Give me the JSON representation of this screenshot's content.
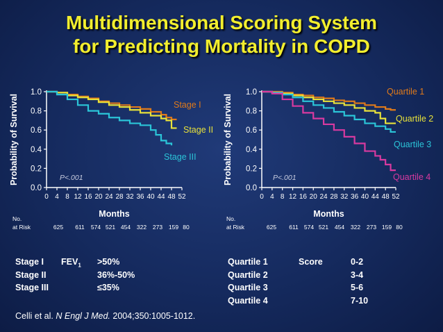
{
  "title_line1": "Multidimensional Scoring System",
  "title_line2": "for Predicting Mortality in COPD",
  "chart_data": [
    {
      "type": "line",
      "ylabel": "Probability of Survival",
      "xlabel": "Months",
      "xlim": [
        0,
        52
      ],
      "ylim": [
        0.0,
        1.0
      ],
      "x_ticks": [
        "0",
        "4",
        "8",
        "12",
        "16",
        "20",
        "24",
        "28",
        "32",
        "36",
        "40",
        "44",
        "48",
        "52"
      ],
      "y_ticks": [
        "0.0",
        "0.2",
        "0.4",
        "0.6",
        "0.8",
        "1.0"
      ],
      "annotation": "P<.001",
      "risk_label_line1": "No.",
      "risk_label_line2": "at Risk",
      "at_risk": [
        "625",
        "611",
        "574",
        "521",
        "454",
        "322",
        "273",
        "159",
        "80"
      ],
      "series": [
        {
          "name": "Stage I",
          "color": "#e07a1a",
          "x": [
            0,
            4,
            8,
            12,
            16,
            20,
            24,
            28,
            32,
            36,
            40,
            44,
            46,
            48,
            50
          ],
          "y": [
            1.0,
            0.99,
            0.97,
            0.95,
            0.93,
            0.9,
            0.88,
            0.86,
            0.84,
            0.82,
            0.79,
            0.76,
            0.73,
            0.71,
            0.71
          ]
        },
        {
          "name": "Stage II",
          "color": "#e8e23a",
          "x": [
            0,
            4,
            8,
            12,
            16,
            20,
            24,
            28,
            32,
            36,
            40,
            44,
            46,
            48,
            50
          ],
          "y": [
            1.0,
            0.99,
            0.96,
            0.94,
            0.92,
            0.89,
            0.86,
            0.84,
            0.81,
            0.78,
            0.75,
            0.72,
            0.7,
            0.62,
            0.62
          ]
        },
        {
          "name": "Stage III",
          "color": "#2bc5d8",
          "x": [
            0,
            4,
            8,
            12,
            16,
            20,
            24,
            28,
            32,
            36,
            40,
            42,
            44,
            46,
            48
          ],
          "y": [
            1.0,
            0.97,
            0.92,
            0.86,
            0.8,
            0.77,
            0.73,
            0.7,
            0.67,
            0.65,
            0.6,
            0.55,
            0.49,
            0.46,
            0.44
          ]
        }
      ]
    },
    {
      "type": "line",
      "ylabel": "Probability of Survival",
      "xlabel": "Months",
      "xlim": [
        0,
        52
      ],
      "ylim": [
        0.0,
        1.0
      ],
      "x_ticks": [
        "0",
        "4",
        "8",
        "12",
        "16",
        "20",
        "24",
        "28",
        "32",
        "36",
        "40",
        "44",
        "48",
        "52"
      ],
      "y_ticks": [
        "0.0",
        "0.2",
        "0.4",
        "0.6",
        "0.8",
        "1.0"
      ],
      "annotation": "P<.001",
      "risk_label_line1": "No.",
      "risk_label_line2": "at Risk",
      "at_risk": [
        "625",
        "611",
        "574",
        "521",
        "454",
        "322",
        "273",
        "159",
        "80"
      ],
      "series": [
        {
          "name": "Quartile 1",
          "color": "#e07a1a",
          "x": [
            0,
            4,
            8,
            12,
            16,
            20,
            24,
            28,
            32,
            36,
            40,
            44,
            48,
            50,
            52
          ],
          "y": [
            1.0,
            1.0,
            0.99,
            0.97,
            0.96,
            0.94,
            0.93,
            0.91,
            0.9,
            0.88,
            0.86,
            0.84,
            0.82,
            0.81,
            0.81
          ]
        },
        {
          "name": "Quartile 2",
          "color": "#e8e23a",
          "x": [
            0,
            4,
            8,
            12,
            16,
            20,
            24,
            28,
            32,
            36,
            40,
            44,
            46,
            48,
            52
          ],
          "y": [
            1.0,
            0.99,
            0.98,
            0.96,
            0.94,
            0.92,
            0.9,
            0.88,
            0.86,
            0.83,
            0.8,
            0.78,
            0.72,
            0.67,
            0.67
          ]
        },
        {
          "name": "Quartile 3",
          "color": "#2bc5d8",
          "x": [
            0,
            4,
            8,
            12,
            16,
            20,
            24,
            28,
            32,
            36,
            40,
            44,
            48,
            50,
            52
          ],
          "y": [
            1.0,
            0.99,
            0.97,
            0.94,
            0.9,
            0.86,
            0.83,
            0.79,
            0.75,
            0.71,
            0.67,
            0.64,
            0.61,
            0.58,
            0.58
          ]
        },
        {
          "name": "Quartile 4",
          "color": "#d83aa0",
          "x": [
            0,
            4,
            8,
            12,
            16,
            20,
            24,
            28,
            32,
            36,
            40,
            44,
            46,
            48,
            50,
            52
          ],
          "y": [
            1.0,
            0.98,
            0.92,
            0.85,
            0.78,
            0.72,
            0.66,
            0.6,
            0.53,
            0.46,
            0.38,
            0.33,
            0.29,
            0.24,
            0.18,
            0.18
          ]
        }
      ]
    }
  ],
  "stage_legend": [
    {
      "stage": "Stage I",
      "fev_base": "FEV",
      "fev_sub": "1",
      "range": ">50%"
    },
    {
      "stage": "Stage II",
      "fev_base": "",
      "fev_sub": "",
      "range": "36%-50%"
    },
    {
      "stage": "Stage III",
      "fev_base": "",
      "fev_sub": "",
      "range": "≤35%"
    }
  ],
  "quartile_legend": {
    "score_header": "Score",
    "rows": [
      {
        "quartile": "Quartile 1",
        "score": "0-2"
      },
      {
        "quartile": "Quartile 2",
        "score": "3-4"
      },
      {
        "quartile": "Quartile 3",
        "score": "5-6"
      },
      {
        "quartile": "Quartile 4",
        "score": "7-10"
      }
    ]
  },
  "citation": {
    "authors": "Celli et al.",
    "journal": "N Engl J Med.",
    "details": "2004;350:1005-1012."
  }
}
